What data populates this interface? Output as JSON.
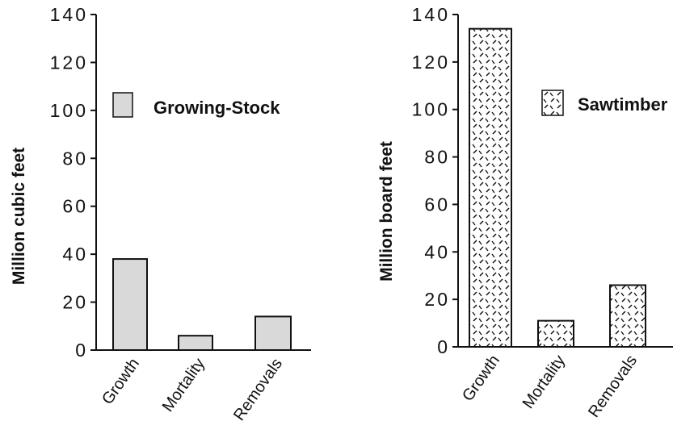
{
  "chart_data": [
    {
      "type": "bar",
      "categories": [
        "Growth",
        "Mortality",
        "Removals"
      ],
      "values": [
        38,
        6,
        14
      ],
      "ylabel": "Million cubic feet",
      "ylim": [
        0,
        140
      ],
      "yticks": [
        0,
        20,
        40,
        60,
        80,
        100,
        120,
        140
      ],
      "legend": "Growing-Stock",
      "legend_position": "upper-right",
      "bar_fill": "gray",
      "grid": false
    },
    {
      "type": "bar",
      "categories": [
        "Growth",
        "Mortality",
        "Removals"
      ],
      "values": [
        134,
        11,
        26
      ],
      "ylabel": "Million board feet",
      "ylim": [
        0,
        140
      ],
      "yticks": [
        0,
        20,
        40,
        60,
        80,
        100,
        120,
        140
      ],
      "legend": "Sawtimber",
      "legend_position": "upper-right",
      "bar_fill": "dashed-hatch",
      "grid": false
    }
  ],
  "colors": {
    "growing_stock_fill": "#d9d9d9",
    "sawtimber_fill": "#ffffff",
    "stroke": "#111111"
  }
}
